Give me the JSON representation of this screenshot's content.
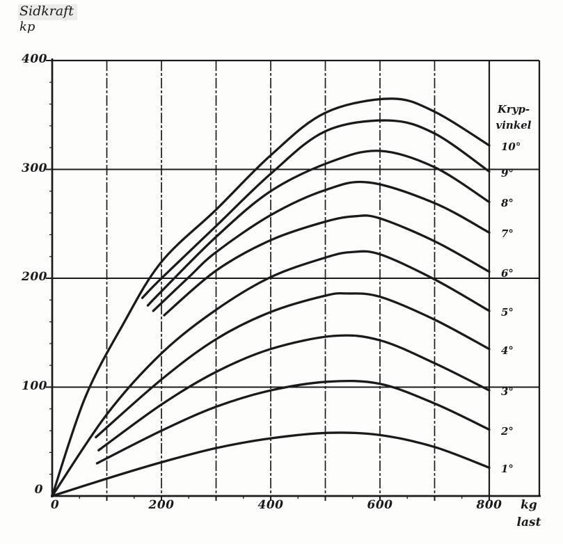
{
  "colors": {
    "ink": "#1a1a1a",
    "paper": "#fdfdfc",
    "shade": "#ececea"
  },
  "title": {
    "line1": "Sidkraft",
    "line2": "kp"
  },
  "legend": {
    "line1": "Kryp-",
    "line2": "vinkel"
  },
  "x_axis": {
    "unit_line1": "kg",
    "unit_line2": "last"
  },
  "chart_data": {
    "type": "line",
    "title": "",
    "xlabel": "last (kg)",
    "ylabel": "Sidkraft (kp)",
    "xlim": [
      0,
      800
    ],
    "ylim": [
      0,
      400
    ],
    "x_ticks": [
      0,
      200,
      400,
      600,
      800
    ],
    "y_ticks": [
      0,
      100,
      200,
      300,
      400
    ],
    "grid_step_x": 100,
    "grid_step_y": 100,
    "grid": true,
    "legend_title": "Krypvinkel",
    "legend_position": "right",
    "series": [
      {
        "name": "10°",
        "points": [
          [
            0,
            0
          ],
          [
            60,
            90
          ],
          [
            130,
            158
          ],
          [
            200,
            215
          ],
          [
            300,
            263
          ],
          [
            400,
            313
          ],
          [
            500,
            352
          ],
          [
            620,
            365
          ],
          [
            700,
            353
          ],
          [
            800,
            322
          ]
        ]
      },
      {
        "name": "9°",
        "points": [
          [
            165,
            182
          ],
          [
            200,
            200
          ],
          [
            300,
            248
          ],
          [
            400,
            296
          ],
          [
            500,
            335
          ],
          [
            615,
            345
          ],
          [
            700,
            333
          ],
          [
            800,
            298
          ]
        ]
      },
      {
        "name": "8°",
        "points": [
          [
            175,
            175
          ],
          [
            200,
            188
          ],
          [
            300,
            238
          ],
          [
            400,
            280
          ],
          [
            510,
            307
          ],
          [
            600,
            317
          ],
          [
            700,
            302
          ],
          [
            800,
            270
          ]
        ]
      },
      {
        "name": "7°",
        "points": [
          [
            185,
            170
          ],
          [
            250,
            201
          ],
          [
            300,
            224
          ],
          [
            400,
            258
          ],
          [
            500,
            281
          ],
          [
            580,
            288
          ],
          [
            700,
            269
          ],
          [
            800,
            242
          ]
        ]
      },
      {
        "name": "6°",
        "points": [
          [
            205,
            166
          ],
          [
            300,
            207
          ],
          [
            400,
            235
          ],
          [
            500,
            252
          ],
          [
            555,
            257
          ],
          [
            600,
            255
          ],
          [
            700,
            234
          ],
          [
            800,
            206
          ]
        ]
      },
      {
        "name": "5°",
        "points": [
          [
            0,
            0
          ],
          [
            100,
            75
          ],
          [
            200,
            131
          ],
          [
            300,
            171
          ],
          [
            400,
            201
          ],
          [
            500,
            219
          ],
          [
            548,
            224
          ],
          [
            600,
            222
          ],
          [
            700,
            199
          ],
          [
            800,
            170
          ]
        ]
      },
      {
        "name": "4°",
        "points": [
          [
            80,
            54
          ],
          [
            200,
            107
          ],
          [
            300,
            144
          ],
          [
            400,
            169
          ],
          [
            500,
            184
          ],
          [
            540,
            186
          ],
          [
            600,
            183
          ],
          [
            700,
            162
          ],
          [
            800,
            135
          ]
        ]
      },
      {
        "name": "3°",
        "points": [
          [
            85,
            42
          ],
          [
            200,
            84
          ],
          [
            300,
            114
          ],
          [
            400,
            135
          ],
          [
            515,
            147
          ],
          [
            600,
            143
          ],
          [
            700,
            122
          ],
          [
            800,
            97
          ]
        ]
      },
      {
        "name": "2°",
        "points": [
          [
            82,
            30
          ],
          [
            200,
            60
          ],
          [
            300,
            82
          ],
          [
            400,
            97
          ],
          [
            505,
            105
          ],
          [
            600,
            103
          ],
          [
            700,
            85
          ],
          [
            800,
            61
          ]
        ]
      },
      {
        "name": "1°",
        "points": [
          [
            0,
            0
          ],
          [
            100,
            16
          ],
          [
            200,
            31
          ],
          [
            300,
            44
          ],
          [
            400,
            53
          ],
          [
            505,
            58
          ],
          [
            600,
            56
          ],
          [
            700,
            45
          ],
          [
            800,
            26
          ]
        ]
      }
    ]
  }
}
